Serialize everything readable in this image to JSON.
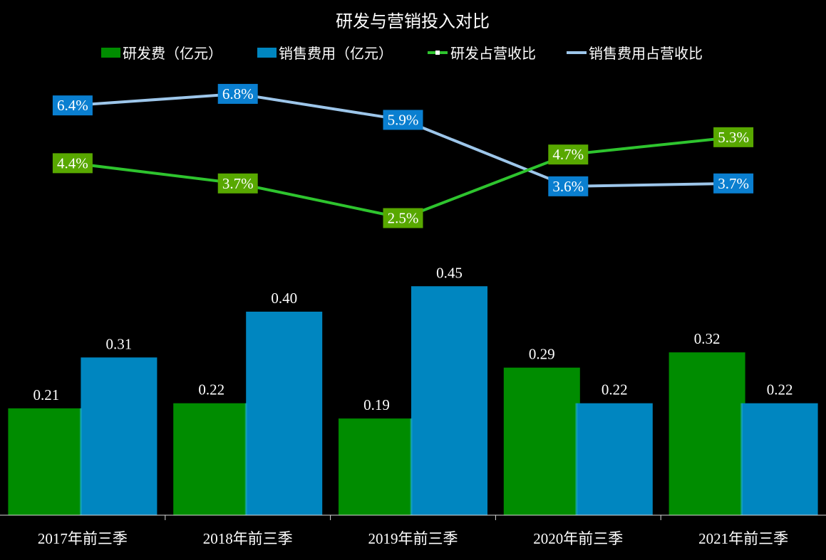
{
  "chart_data": {
    "type": "bar",
    "title": "研发与营销投入对比",
    "categories": [
      "2017年前三季",
      "2018年前三季",
      "2019年前三季",
      "2020年前三季",
      "2021年前三季"
    ],
    "series": [
      {
        "name": "研发费（亿元）",
        "kind": "bar",
        "color": "#008c00",
        "values": [
          0.21,
          0.22,
          0.19,
          0.29,
          0.32
        ],
        "labels": [
          "0.21",
          "0.22",
          "0.19",
          "0.29",
          "0.32"
        ]
      },
      {
        "name": "销售费用（亿元）",
        "kind": "bar",
        "color": "#0086c0",
        "values": [
          0.31,
          0.4,
          0.45,
          0.22,
          0.22
        ],
        "labels": [
          "0.31",
          "0.40",
          "0.45",
          "0.22",
          "0.22"
        ]
      },
      {
        "name": "研发占营收比",
        "kind": "line",
        "color": "#2ec42e",
        "label_bg": "#58a800",
        "values": [
          4.4,
          3.7,
          2.5,
          4.7,
          5.3
        ],
        "labels": [
          "4.4%",
          "3.7%",
          "2.5%",
          "4.7%",
          "5.3%"
        ]
      },
      {
        "name": "销售费用占营收比",
        "kind": "line",
        "color": "#9dc6ea",
        "label_bg": "#0a7fd0",
        "values": [
          6.4,
          6.8,
          5.9,
          3.6,
          3.7
        ],
        "labels": [
          "6.4%",
          "6.8%",
          "5.9%",
          "3.6%",
          "3.7%"
        ]
      }
    ],
    "bar_axis_range": [
      0,
      0.5
    ],
    "line_axis_range": [
      0,
      8
    ],
    "grid": false,
    "legend_position": "top"
  }
}
